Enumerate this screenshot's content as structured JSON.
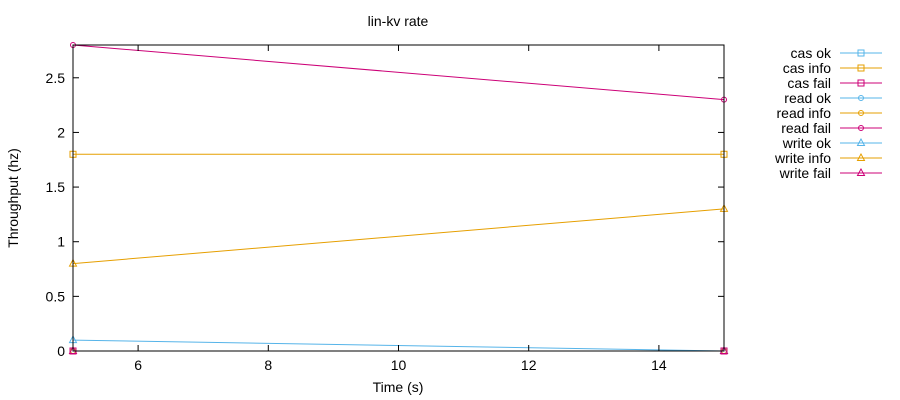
{
  "chart_data": {
    "type": "line",
    "title": "lin-kv rate",
    "xlabel": "Time (s)",
    "ylabel": "Throughput (hz)",
    "xlim": [
      5,
      15
    ],
    "ylim": [
      0,
      2.8
    ],
    "x_ticks": [
      6,
      8,
      10,
      12,
      14
    ],
    "y_ticks": [
      0,
      0.5,
      1,
      1.5,
      2,
      2.5
    ],
    "grid": false,
    "legend_position": "outside-right",
    "series": [
      {
        "name": "cas ok",
        "color": "#56b4e9",
        "marker": "square",
        "x": [
          5,
          15
        ],
        "y": [
          0,
          0
        ]
      },
      {
        "name": "cas info",
        "color": "#e69f00",
        "marker": "square",
        "x": [
          5,
          15
        ],
        "y": [
          1.8,
          1.8
        ]
      },
      {
        "name": "cas fail",
        "color": "#cc0077",
        "marker": "square",
        "x": [
          5,
          15
        ],
        "y": [
          0,
          0
        ]
      },
      {
        "name": "read ok",
        "color": "#56b4e9",
        "marker": "circle",
        "x": [
          5,
          15
        ],
        "y": [
          0,
          0
        ]
      },
      {
        "name": "read info",
        "color": "#e69f00",
        "marker": "circle",
        "x": [
          5,
          15
        ],
        "y": [
          0,
          0
        ]
      },
      {
        "name": "read fail",
        "color": "#cc0077",
        "marker": "circle",
        "x": [
          5,
          15
        ],
        "y": [
          2.8,
          2.3
        ]
      },
      {
        "name": "write ok",
        "color": "#56b4e9",
        "marker": "triangle",
        "x": [
          5,
          15
        ],
        "y": [
          0.1,
          0
        ]
      },
      {
        "name": "write info",
        "color": "#e69f00",
        "marker": "triangle",
        "x": [
          5,
          15
        ],
        "y": [
          0.8,
          1.3
        ]
      },
      {
        "name": "write fail",
        "color": "#cc0077",
        "marker": "triangle",
        "x": [
          5,
          15
        ],
        "y": [
          0,
          0
        ]
      }
    ]
  }
}
